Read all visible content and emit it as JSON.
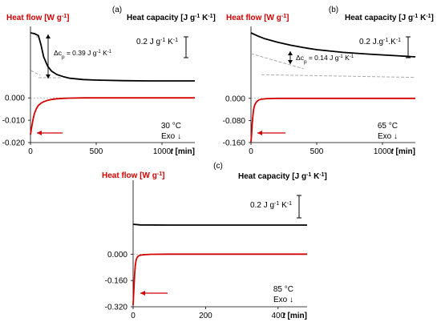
{
  "chart_data": [
    {
      "type": "line",
      "panel_label": "(a)",
      "left_axis_title": "Heat flow [W g-1]",
      "right_axis_title": "Heat capacity [J g-1 K-1]",
      "xlabel": "t [min]",
      "xlim": [
        0,
        1250
      ],
      "xticks": [
        0,
        500,
        1000
      ],
      "ylim": [
        -0.02,
        0.032
      ],
      "yticks": [
        0.0,
        -0.01,
        -0.02
      ],
      "ytick_labels": [
        "0.000",
        "-0.010",
        "-0.020"
      ],
      "grid": false,
      "scale_bar_label": "0.2 J g-1 K-1",
      "delta_label": "Δcp = 0.39 J g-1 K-1",
      "temperature": "30 °C",
      "exo": "Exo ↓",
      "series": [
        {
          "name": "Heat flow [W g-1]",
          "axis": "left",
          "color": "#d40000",
          "x": [
            0,
            10,
            20,
            30,
            45,
            60,
            80,
            100,
            130,
            160,
            200,
            250,
            300,
            400,
            500,
            700,
            900,
            1100,
            1250
          ],
          "y": [
            -0.0165,
            -0.0128,
            -0.0095,
            -0.007,
            -0.0048,
            -0.0034,
            -0.0024,
            -0.0017,
            -0.0011,
            -0.0007,
            -0.0004,
            -0.0002,
            -0.0001,
            0.0,
            0.0,
            0.0,
            0.0,
            0.0,
            0.0
          ]
        },
        {
          "name": "Heat capacity [J g-1 K-1]",
          "axis": "right",
          "color": "#000000",
          "x": [
            0,
            30,
            60,
            80,
            100,
            130,
            160,
            200,
            250,
            300,
            400,
            500,
            700,
            900,
            1100,
            1250
          ],
          "y": [
            0.0305,
            0.0302,
            0.0295,
            0.026,
            0.0215,
            0.018,
            0.0161,
            0.0148,
            0.014,
            0.0134,
            0.0129,
            0.0127,
            0.0125,
            0.0124,
            0.0124,
            0.0124
          ]
        }
      ]
    },
    {
      "type": "line",
      "panel_label": "(b)",
      "left_axis_title": "Heat flow [W g-1]",
      "right_axis_title": "Heat capacity [J g-1 K-1]",
      "xlabel": "t [min]",
      "xlim": [
        0,
        1250
      ],
      "xticks": [
        0,
        500,
        1000
      ],
      "ylim": [
        -0.16,
        0.26
      ],
      "yticks": [
        0.0,
        -0.08,
        -0.16
      ],
      "ytick_labels": [
        "0.000",
        "-0.080",
        "-0.160"
      ],
      "grid": false,
      "scale_bar_label": "0.2 J.g-1.K-1",
      "delta_label": "Δcp = 0.14 J g-1 K-1",
      "temperature": "65 °C",
      "exo": "Exo ↓",
      "series": [
        {
          "name": "Heat flow [W g-1]",
          "axis": "left",
          "color": "#d40000",
          "x": [
            0,
            5,
            10,
            15,
            20,
            30,
            45,
            60,
            80,
            120,
            200,
            400,
            700,
            1000,
            1250
          ],
          "y": [
            -0.158,
            -0.13,
            -0.09,
            -0.06,
            -0.04,
            -0.022,
            -0.011,
            -0.006,
            -0.003,
            -0.001,
            0.0,
            0.0,
            0.0,
            0.0,
            0.0
          ]
        },
        {
          "name": "Heat capacity [J g-1 K-1]",
          "axis": "right",
          "color": "#000000",
          "x": [
            0,
            50,
            100,
            200,
            300,
            400,
            500,
            700,
            900,
            1100,
            1250
          ],
          "y": [
            0.195,
            0.185,
            0.176,
            0.164,
            0.154,
            0.146,
            0.139,
            0.13,
            0.124,
            0.119,
            0.115
          ]
        }
      ]
    },
    {
      "type": "line",
      "panel_label": "(c)",
      "left_axis_title": "Heat flow [W g-1]",
      "right_axis_title": "Heat capacity [J g-1 K-1]",
      "xlabel": "t [min]",
      "xlim": [
        0,
        480
      ],
      "xticks": [
        0,
        200,
        400
      ],
      "ylim": [
        -0.32,
        0.45
      ],
      "yticks": [
        0.0,
        -0.16,
        -0.32
      ],
      "ytick_labels": [
        "0.000",
        "-0.160",
        "-0.320"
      ],
      "grid": false,
      "scale_bar_label": "0.2 J g-1 K-1",
      "temperature": "85 °C",
      "exo": "Exo ↓",
      "series": [
        {
          "name": "Heat flow [W g-1]",
          "axis": "left",
          "color": "#d40000",
          "x": [
            0,
            2,
            4,
            6,
            8,
            10,
            14,
            20,
            30,
            50,
            100,
            200,
            300,
            400,
            480
          ],
          "y": [
            -0.31,
            -0.22,
            -0.13,
            -0.07,
            -0.04,
            -0.025,
            -0.012,
            -0.006,
            -0.003,
            -0.001,
            0.0,
            0.0,
            0.0,
            0.0,
            0.0
          ]
        },
        {
          "name": "Heat capacity [J g-1 K-1]",
          "axis": "right",
          "color": "#000000",
          "x": [
            0,
            20,
            100,
            200,
            300,
            400,
            480
          ],
          "y": [
            0.26,
            0.255,
            0.254,
            0.254,
            0.254,
            0.254,
            0.254
          ]
        }
      ]
    }
  ]
}
